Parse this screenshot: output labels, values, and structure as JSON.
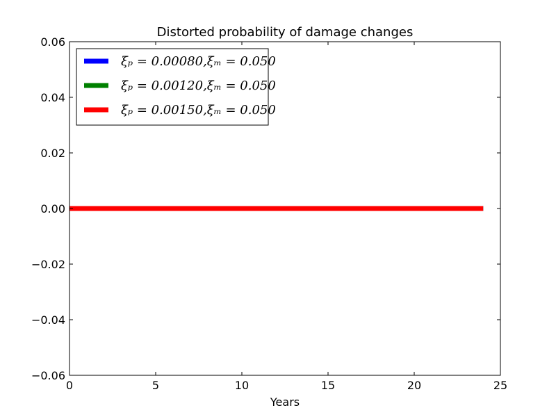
{
  "chart_data": {
    "type": "line",
    "title": "Distorted probability of damage changes",
    "xlabel": "Years",
    "ylabel": "",
    "xlim": [
      0,
      25
    ],
    "ylim": [
      -0.06,
      0.06
    ],
    "xticks": [
      0,
      5,
      10,
      15,
      20,
      25
    ],
    "xtick_labels": [
      "0",
      "5",
      "10",
      "15",
      "20",
      "25"
    ],
    "yticks": [
      -0.06,
      -0.04,
      -0.02,
      0.0,
      0.02,
      0.04,
      0.06
    ],
    "ytick_labels": [
      "−0.06",
      "−0.04",
      "−0.02",
      "0.00",
      "0.02",
      "0.04",
      "0.06"
    ],
    "grid": false,
    "legend_position": "top-left",
    "series": [
      {
        "name": "ξₚ = 0.00080,ξₘ = 0.050",
        "color": "#0000ff",
        "x": [
          0,
          24
        ],
        "y": [
          0.0,
          0.0
        ]
      },
      {
        "name": "ξₚ = 0.00120,ξₘ = 0.050",
        "color": "#008000",
        "x": [
          0,
          24
        ],
        "y": [
          0.0,
          0.0
        ]
      },
      {
        "name": "ξₚ = 0.00150,ξₘ = 0.050",
        "color": "#ff0000",
        "x": [
          0,
          24
        ],
        "y": [
          0.0,
          0.0
        ]
      }
    ]
  }
}
